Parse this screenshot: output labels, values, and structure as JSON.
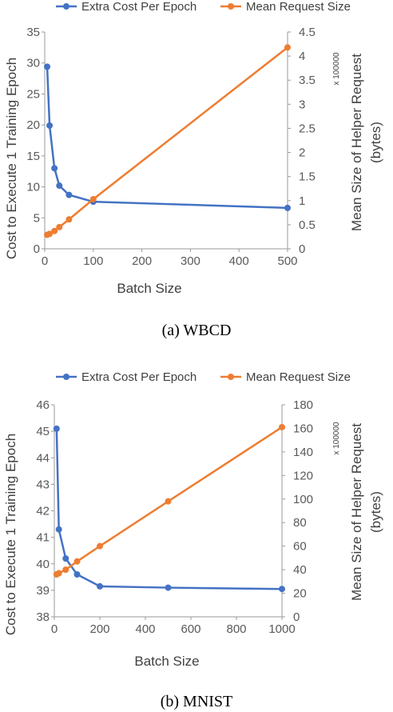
{
  "chart_data": [
    {
      "type": "line",
      "caption": "(a) WBCD",
      "xlabel": "Batch Size",
      "ylabel_left": "Cost to Execute 1 Training Epoch",
      "ylabel_right": "Mean Size of Helper Request (bytes)",
      "right_axis_multiplier": "x 100000",
      "xlim": [
        0,
        500
      ],
      "x_ticks": [
        0,
        100,
        200,
        300,
        400,
        500
      ],
      "ylim_left": [
        0,
        35
      ],
      "y_ticks_left": [
        0,
        5,
        10,
        15,
        20,
        25,
        30,
        35
      ],
      "ylim_right": [
        0,
        4.5
      ],
      "y_ticks_right": [
        "0",
        "0.5",
        "1",
        "1.5",
        "2",
        "2.5",
        "3",
        "3.5",
        "4",
        "4.5"
      ],
      "legend_position": "top",
      "series": [
        {
          "name": "Extra Cost Per Epoch",
          "axis": "left",
          "color": "#4472C4",
          "x": [
            5,
            10,
            20,
            30,
            50,
            100,
            500
          ],
          "y": [
            29.4,
            19.9,
            13.0,
            10.2,
            8.7,
            7.6,
            6.6
          ]
        },
        {
          "name": "Mean Request Size",
          "axis": "right",
          "color": "#ED7D31",
          "x": [
            5,
            10,
            20,
            30,
            50,
            100,
            500
          ],
          "y": [
            0.29,
            0.31,
            0.37,
            0.45,
            0.61,
            1.03,
            4.18
          ]
        }
      ]
    },
    {
      "type": "line",
      "caption": "(b) MNIST",
      "xlabel": "Batch Size",
      "ylabel_left": "Cost to Execute 1 Training Epoch",
      "ylabel_right": "Mean Size of Helper Request (bytes)",
      "right_axis_multiplier": "x 100000",
      "xlim": [
        0,
        1000
      ],
      "x_ticks": [
        0,
        200,
        400,
        600,
        800,
        1000
      ],
      "ylim_left": [
        38,
        46
      ],
      "y_ticks_left": [
        38,
        39,
        40,
        41,
        42,
        43,
        44,
        45,
        46
      ],
      "ylim_right": [
        0,
        180
      ],
      "y_ticks_right": [
        "0",
        "20",
        "40",
        "60",
        "80",
        "100",
        "120",
        "140",
        "160",
        "180"
      ],
      "legend_position": "top",
      "series": [
        {
          "name": "Extra Cost Per Epoch",
          "axis": "left",
          "color": "#4472C4",
          "x": [
            10,
            20,
            50,
            100,
            200,
            500,
            1000
          ],
          "y": [
            45.1,
            41.3,
            40.2,
            39.6,
            39.15,
            39.1,
            39.05
          ]
        },
        {
          "name": "Mean Request Size",
          "axis": "right",
          "color": "#ED7D31",
          "x": [
            10,
            20,
            50,
            100,
            200,
            500,
            1000
          ],
          "y": [
            36,
            37,
            40,
            47,
            60,
            98,
            161
          ]
        }
      ]
    }
  ]
}
